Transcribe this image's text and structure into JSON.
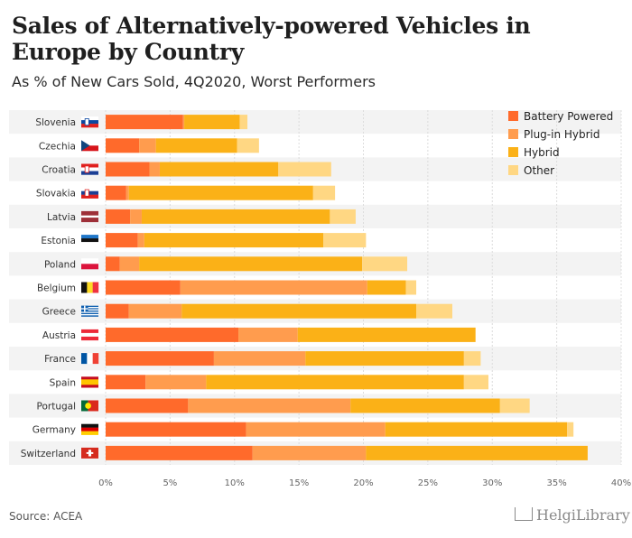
{
  "title": "Sales of Alternatively-powered Vehicles in Europe by Country",
  "subtitle": "As % of New Cars Sold, 4Q2020, Worst Performers",
  "source": "Source: ACEA",
  "logo": "HelgiLibrary",
  "colors": {
    "Battery Powered": "#ff6a2b",
    "Plug-in Hybrid": "#ff9c4e",
    "Hybrid": "#fbb117",
    "Other": "#ffd783"
  },
  "chart_data": {
    "type": "bar",
    "orientation": "horizontal",
    "stacked": true,
    "xlim": [
      0,
      40
    ],
    "x_ticks": [
      "0%",
      "5%",
      "10%",
      "15%",
      "20%",
      "25%",
      "30%",
      "35%",
      "40%"
    ],
    "grid": true,
    "legend_position": "top-right",
    "categories": [
      "Slovenia",
      "Czechia",
      "Croatia",
      "Slovakia",
      "Latvia",
      "Estonia",
      "Poland",
      "Belgium",
      "Greece",
      "Austria",
      "France",
      "Spain",
      "Portugal",
      "Germany",
      "Switzerland"
    ],
    "series": [
      {
        "name": "Battery Powered",
        "values": [
          6.0,
          2.6,
          3.4,
          1.6,
          1.9,
          2.5,
          1.1,
          5.8,
          1.8,
          10.3,
          8.4,
          3.1,
          6.4,
          10.9,
          11.4
        ]
      },
      {
        "name": "Plug-in Hybrid",
        "values": [
          0.1,
          1.3,
          0.8,
          0.2,
          0.9,
          0.5,
          1.5,
          14.5,
          4.1,
          4.6,
          7.1,
          4.7,
          12.6,
          10.8,
          8.8
        ]
      },
      {
        "name": "Hybrid",
        "values": [
          4.3,
          6.3,
          9.2,
          14.3,
          14.6,
          13.9,
          17.3,
          3.0,
          18.2,
          13.8,
          12.3,
          20.0,
          11.6,
          14.1,
          17.2
        ]
      },
      {
        "name": "Other",
        "values": [
          0.6,
          1.7,
          4.1,
          1.7,
          2.0,
          3.3,
          3.5,
          0.8,
          2.8,
          0.0,
          1.3,
          1.9,
          2.3,
          0.5,
          0.0
        ]
      }
    ]
  }
}
